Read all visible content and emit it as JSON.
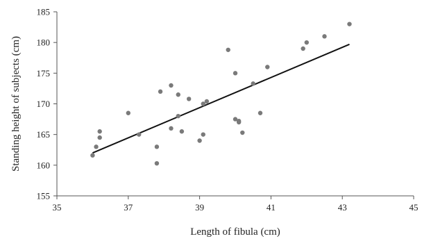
{
  "colors": {
    "point": "#7a7a7a",
    "trendline": "#111111",
    "axis": "#555555"
  },
  "chart_data": {
    "type": "scatter",
    "title": "",
    "xlabel": "Length of fibula (cm)",
    "ylabel": "Standing height of subjects (cm)",
    "xlim": [
      35,
      45
    ],
    "ylim": [
      155,
      185
    ],
    "xticks": [
      35,
      37,
      39,
      41,
      43,
      45
    ],
    "yticks": [
      155,
      160,
      165,
      170,
      175,
      180,
      185
    ],
    "grid": false,
    "legend": "none",
    "points": [
      {
        "x": 36.0,
        "y": 161.6
      },
      {
        "x": 36.1,
        "y": 163.0
      },
      {
        "x": 36.2,
        "y": 165.5
      },
      {
        "x": 36.2,
        "y": 164.5
      },
      {
        "x": 37.0,
        "y": 168.5
      },
      {
        "x": 37.3,
        "y": 165.0
      },
      {
        "x": 37.8,
        "y": 163.0
      },
      {
        "x": 37.8,
        "y": 160.3
      },
      {
        "x": 37.9,
        "y": 172.0
      },
      {
        "x": 38.2,
        "y": 173.0
      },
      {
        "x": 38.2,
        "y": 166.0
      },
      {
        "x": 38.4,
        "y": 171.5
      },
      {
        "x": 38.4,
        "y": 168.0
      },
      {
        "x": 38.5,
        "y": 165.5
      },
      {
        "x": 38.7,
        "y": 170.8
      },
      {
        "x": 39.0,
        "y": 164.0
      },
      {
        "x": 39.1,
        "y": 170.0
      },
      {
        "x": 39.1,
        "y": 165.0
      },
      {
        "x": 39.2,
        "y": 170.4
      },
      {
        "x": 39.8,
        "y": 178.8
      },
      {
        "x": 40.0,
        "y": 175.0
      },
      {
        "x": 40.0,
        "y": 167.5
      },
      {
        "x": 40.1,
        "y": 167.0
      },
      {
        "x": 40.1,
        "y": 167.2
      },
      {
        "x": 40.2,
        "y": 165.3
      },
      {
        "x": 40.5,
        "y": 173.3
      },
      {
        "x": 40.7,
        "y": 168.5
      },
      {
        "x": 40.9,
        "y": 176.0
      },
      {
        "x": 41.9,
        "y": 179.0
      },
      {
        "x": 42.0,
        "y": 180.0
      },
      {
        "x": 42.5,
        "y": 181.0
      },
      {
        "x": 43.2,
        "y": 183.0
      }
    ],
    "trendline": {
      "x": [
        36.0,
        43.2
      ],
      "y": [
        162.0,
        179.7
      ]
    }
  }
}
